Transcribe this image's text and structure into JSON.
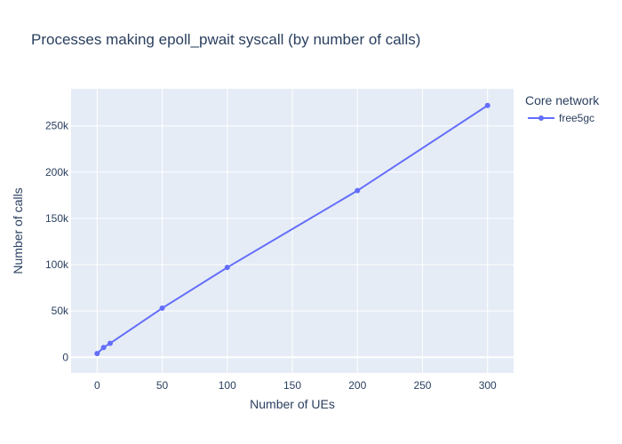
{
  "chart_data": {
    "type": "line",
    "title": "Processes making epoll_pwait syscall (by number of calls)",
    "xlabel": "Number of UEs",
    "ylabel": "Number of calls",
    "xlim": [
      -20,
      320
    ],
    "ylim": [
      -17000,
      290000
    ],
    "x_ticks": [
      0,
      50,
      100,
      150,
      200,
      250,
      300
    ],
    "x_tick_labels": [
      "0",
      "50",
      "100",
      "150",
      "200",
      "250",
      "300"
    ],
    "y_ticks": [
      0,
      50000,
      100000,
      150000,
      200000,
      250000
    ],
    "y_tick_labels": [
      "0",
      "50k",
      "100k",
      "150k",
      "200k",
      "250k"
    ],
    "grid": true,
    "legend": {
      "title": "Core network",
      "placement": "top-right"
    },
    "series": [
      {
        "name": "free5gc",
        "color": "#636efa",
        "x": [
          0,
          5,
          10,
          50,
          100,
          200,
          300
        ],
        "y": [
          4000,
          10500,
          15000,
          53000,
          97000,
          180000,
          272000
        ]
      }
    ]
  }
}
